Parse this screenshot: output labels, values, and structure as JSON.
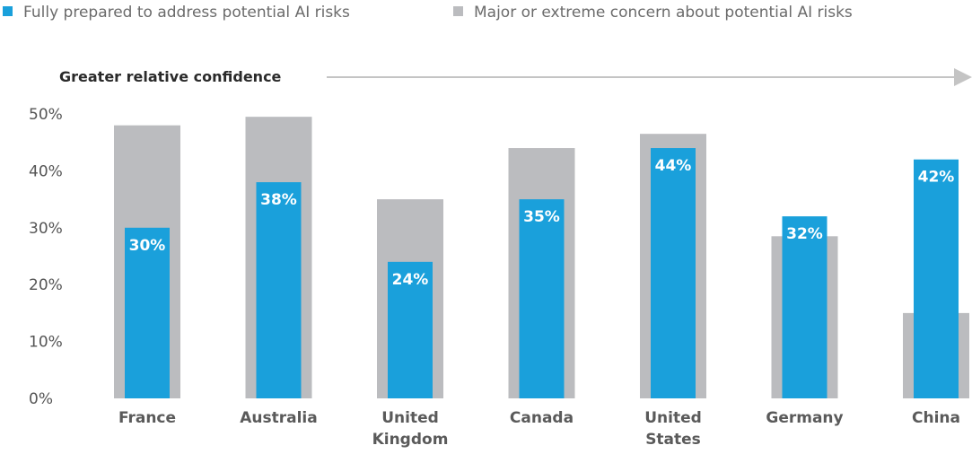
{
  "colors": {
    "prepared": "#1aa0db",
    "concern": "#bbbcbf",
    "arrow": "#c4c4c4"
  },
  "chart_data": {
    "type": "bar",
    "categories": [
      "France",
      "Australia",
      "United Kingdom",
      "Canada",
      "United States",
      "Germany",
      "China"
    ],
    "category_lines": [
      [
        "France"
      ],
      [
        "Australia"
      ],
      [
        "United",
        "Kingdom"
      ],
      [
        "Canada"
      ],
      [
        "United",
        "States"
      ],
      [
        "Germany"
      ],
      [
        "China"
      ]
    ],
    "series": [
      {
        "name": "Fully prepared to address potential AI risks",
        "values": [
          30,
          38,
          24,
          35,
          44,
          32,
          42
        ],
        "value_labels": [
          "30%",
          "38%",
          "24%",
          "35%",
          "44%",
          "32%",
          "42%"
        ]
      },
      {
        "name": "Major or extreme concern about potential AI risks",
        "values": [
          48,
          49.5,
          35,
          44,
          46.5,
          28.5,
          15
        ]
      }
    ],
    "ylim": [
      0,
      50
    ],
    "yticks": [
      0,
      10,
      20,
      30,
      40,
      50
    ],
    "ytick_labels": [
      "0%",
      "10%",
      "20%",
      "30%",
      "40%",
      "50%"
    ],
    "annotation": "Greater relative confidence",
    "legend_position": "top-left",
    "grid": false
  }
}
